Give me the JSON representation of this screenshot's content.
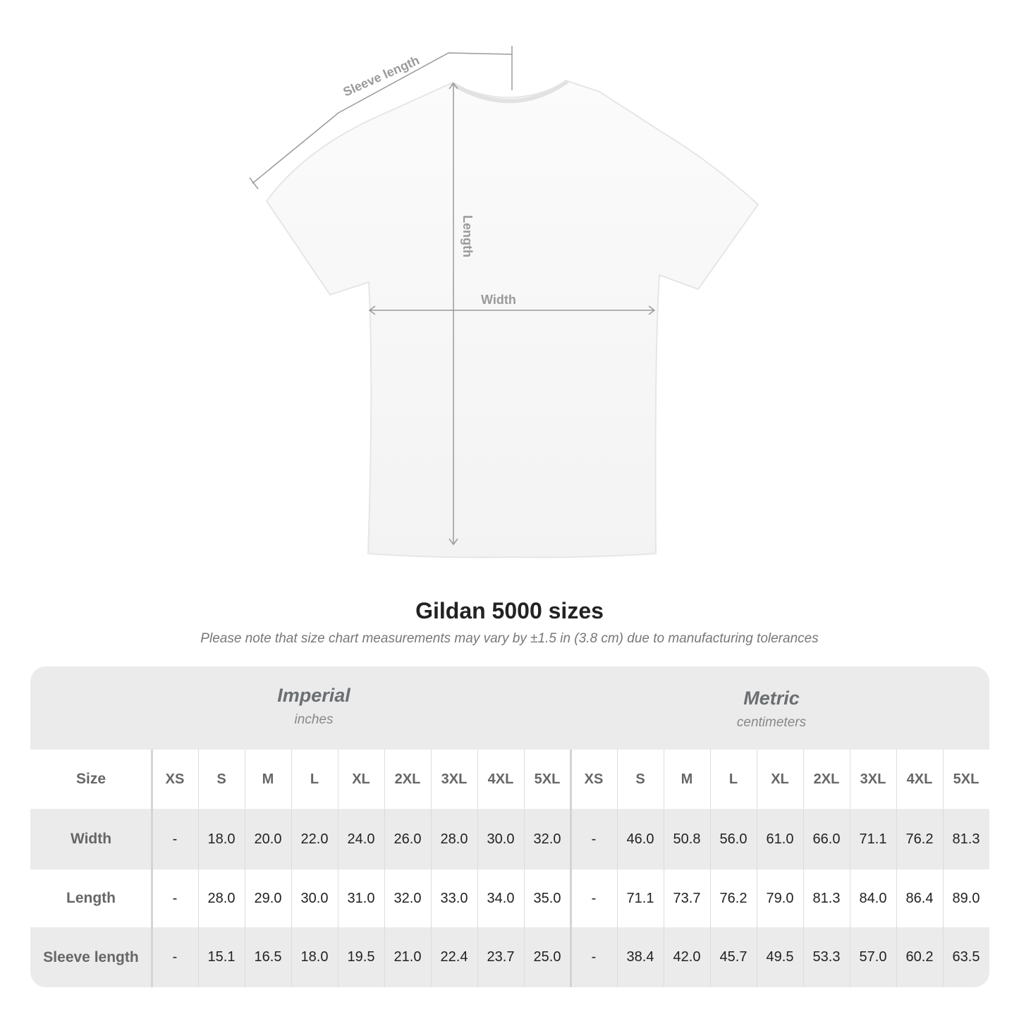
{
  "diagram": {
    "labels": {
      "sleeve": "Sleeve length",
      "length": "Length",
      "width": "Width"
    }
  },
  "title": "Gildan 5000 sizes",
  "subtitle": "Please note that size chart measurements may vary by ±1.5 in (3.8 cm) due to manufacturing tolerances",
  "table": {
    "imperial": {
      "name": "Imperial",
      "unit": "inches"
    },
    "metric": {
      "name": "Metric",
      "unit": "centimeters"
    },
    "size_label": "Size",
    "sizes": [
      "XS",
      "S",
      "M",
      "L",
      "XL",
      "2XL",
      "3XL",
      "4XL",
      "5XL"
    ],
    "rows": [
      {
        "label": "Width",
        "imperial": [
          "-",
          "18.0",
          "20.0",
          "22.0",
          "24.0",
          "26.0",
          "28.0",
          "30.0",
          "32.0"
        ],
        "metric": [
          "-",
          "46.0",
          "50.8",
          "56.0",
          "61.0",
          "66.0",
          "71.1",
          "76.2",
          "81.3"
        ]
      },
      {
        "label": "Length",
        "imperial": [
          "-",
          "28.0",
          "29.0",
          "30.0",
          "31.0",
          "32.0",
          "33.0",
          "34.0",
          "35.0"
        ],
        "metric": [
          "-",
          "71.1",
          "73.7",
          "76.2",
          "79.0",
          "81.3",
          "84.0",
          "86.4",
          "89.0"
        ]
      },
      {
        "label": "Sleeve length",
        "imperial": [
          "-",
          "15.1",
          "16.5",
          "18.0",
          "19.5",
          "21.0",
          "22.4",
          "23.7",
          "25.0"
        ],
        "metric": [
          "-",
          "38.4",
          "42.0",
          "45.7",
          "49.5",
          "53.3",
          "57.0",
          "60.2",
          "63.5"
        ]
      }
    ]
  },
  "colors": {
    "band": "#ebebeb",
    "label": "#666666",
    "measure_line": "#9a9a9a"
  }
}
